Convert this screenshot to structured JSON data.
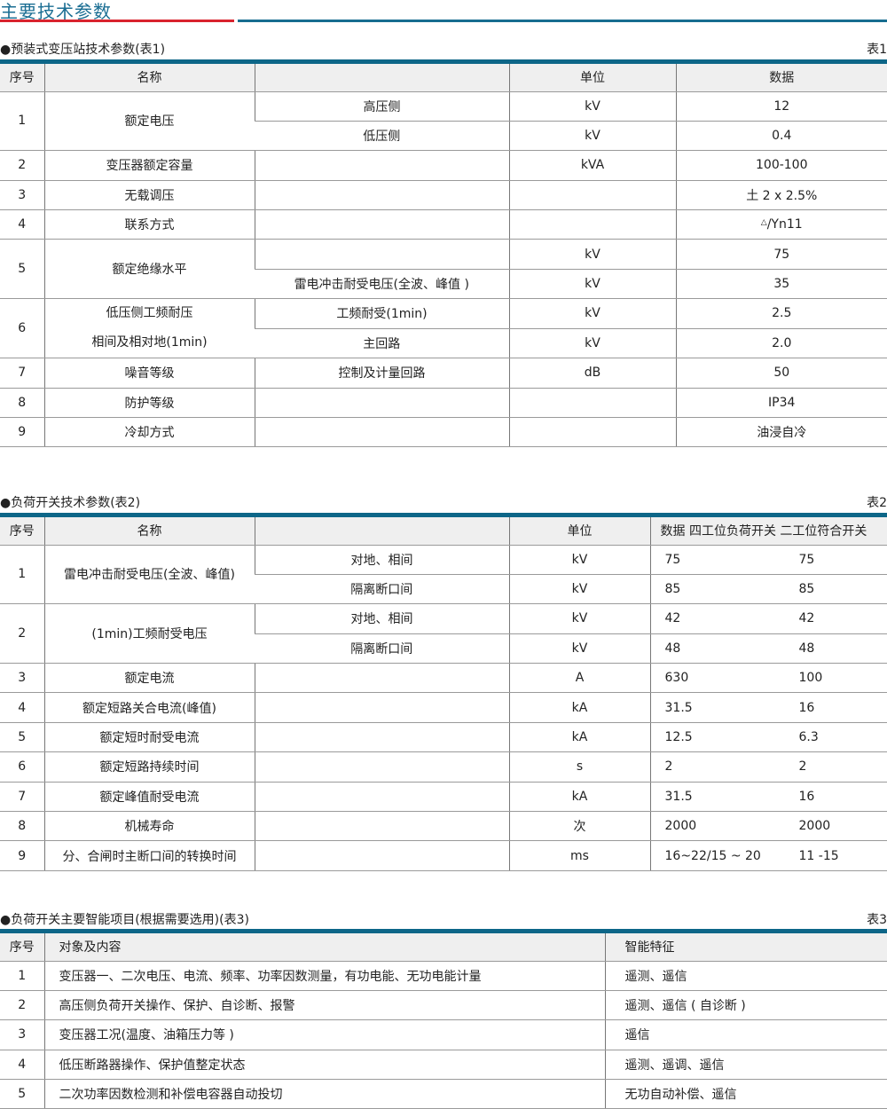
{
  "page_title": "主要技术参数",
  "colors": {
    "title": "#1b6e93",
    "rule_red": "#d9232e",
    "rule_blue": "#176d90",
    "table_bar": "#0d6688",
    "header_bg": "#efefef"
  },
  "t1": {
    "title": "●预装式变压站技术参数(表1)",
    "tag": "表1",
    "headers": [
      "序号",
      "名称",
      "",
      "单位",
      "数据"
    ],
    "r1": {
      "no": "1",
      "name": "额定电压",
      "sub": [
        [
          "高压侧",
          "kV",
          "12"
        ],
        [
          "低压侧",
          "kV",
          "0.4"
        ]
      ]
    },
    "r2": [
      "2",
      "变压器额定容量",
      "",
      "kVA",
      "100-100"
    ],
    "r3": [
      "3",
      "无载调压",
      "",
      "",
      "土 2 x 2.5%"
    ],
    "r4": {
      "no": "4",
      "name": "联系方式",
      "tri": "△",
      "val": "/Yn11"
    },
    "r5": {
      "no": "5",
      "name": "额定绝缘水平",
      "sub": [
        [
          "",
          "kV",
          "75"
        ],
        [
          "雷电冲击耐受电压(全波、峰值 )",
          "kV",
          "35"
        ]
      ]
    },
    "r6": {
      "no": "6",
      "name1": "低压侧工频耐压",
      "name2": "相间及相对地(1min)",
      "sub": [
        [
          "工频耐受(1min)",
          "kV",
          "2.5"
        ],
        [
          "主回路",
          "kV",
          "2.0"
        ]
      ]
    },
    "r7": [
      "7",
      "噪音等级",
      "控制及计量回路",
      "dB",
      "50"
    ],
    "r8": [
      "8",
      "防护等级",
      "",
      "",
      "IP34"
    ],
    "r9": [
      "9",
      "冷却方式",
      "",
      "",
      "油浸自冷"
    ]
  },
  "t2": {
    "title": "●负荷开关技术参数(表2)",
    "tag": "表2",
    "headers": [
      "序号",
      "名称",
      "",
      "单位",
      "数据  四工位负荷开关 二工位符合开关"
    ],
    "r1": {
      "no": "1",
      "name": "雷电冲击耐受电压(全波、峰值)",
      "sub": [
        [
          "对地、相间",
          "kV",
          "75",
          "75"
        ],
        [
          "隔离断口间",
          "kV",
          "85",
          "85"
        ]
      ]
    },
    "r2": {
      "no": "2",
      "name": "(1min)工频耐受电压",
      "sub": [
        [
          "对地、相间",
          "kV",
          "42",
          "42"
        ],
        [
          "隔离断口间",
          "kV",
          "48",
          "48"
        ]
      ]
    },
    "rows": [
      [
        "3",
        "额定电流",
        "",
        "A",
        "630",
        "100"
      ],
      [
        "4",
        "额定短路关合电流(峰值)",
        "",
        "kA",
        "31.5",
        "16"
      ],
      [
        "5",
        "额定短时耐受电流",
        "",
        "kA",
        "12.5",
        "6.3"
      ],
      [
        "6",
        "额定短路持续时间",
        "",
        "s",
        "2",
        "2"
      ],
      [
        "7",
        "额定峰值耐受电流",
        "",
        "kA",
        "31.5",
        "16"
      ],
      [
        "8",
        "机械寿命",
        "",
        "次",
        "2000",
        "2000"
      ],
      [
        "9",
        "分、合闸时主断口间的转换时间",
        "",
        "ms",
        "16~22/15 ~ 20",
        "11 -15"
      ]
    ]
  },
  "t3": {
    "title": "●负荷开关主要智能项目(根据需要选用)(表3)",
    "tag": "表3",
    "headers": [
      "序号",
      "对象及内容",
      "智能特征"
    ],
    "rows": [
      [
        "1",
        "变压器一、二次电压、电流、频率、功率因数测量，有功电能、无功电能计量",
        "遥测、遥信"
      ],
      [
        "2",
        "高压侧负荷开关操作、保护、自诊断、报警",
        "遥测、遥信 ( 自诊断 )"
      ],
      [
        "3",
        "变压器工况(温度、油箱压力等 )",
        "遥信"
      ],
      [
        "4",
        "低压断路器操作、保护值整定状态",
        "遥测、遥调、遥信"
      ],
      [
        "5",
        "二次功率因数检测和补偿电容器自动投切",
        "无功自动补偿、遥信"
      ]
    ]
  }
}
